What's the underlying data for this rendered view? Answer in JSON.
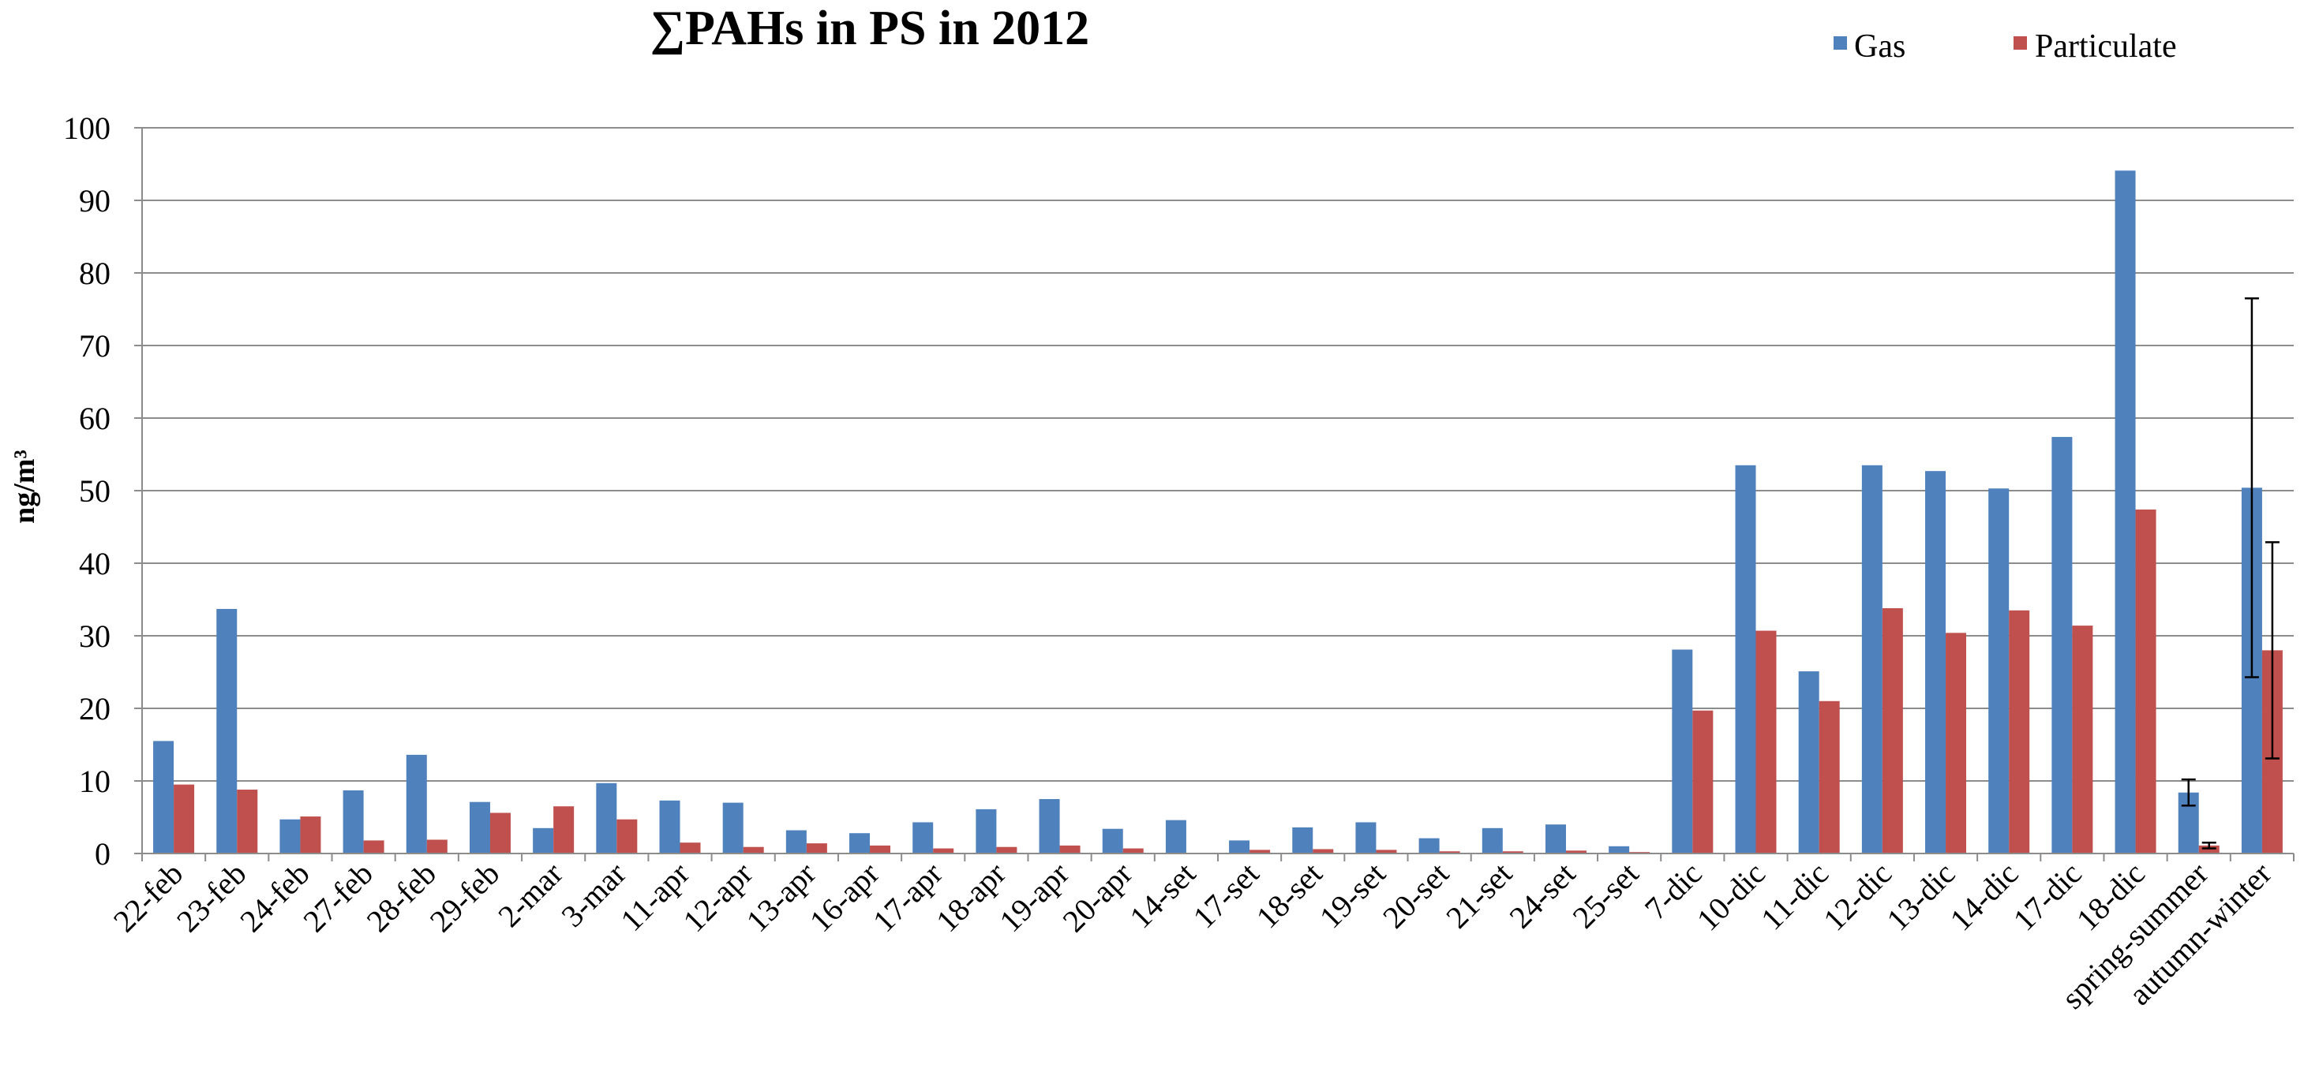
{
  "chart_data": {
    "type": "bar",
    "title": "∑PAHs in PS in 2012",
    "xlabel": "",
    "ylabel": "ng/m³",
    "ylim": [
      0,
      100
    ],
    "yticks": [
      0,
      10,
      20,
      30,
      40,
      50,
      60,
      70,
      80,
      90,
      100
    ],
    "grid": true,
    "legend_position": "top-right",
    "categories": [
      "22-feb",
      "23-feb",
      "24-feb",
      "27-feb",
      "28-feb",
      "29-feb",
      "2-mar",
      "3-mar",
      "11-apr",
      "12-apr",
      "13-apr",
      "16-apr",
      "17-apr",
      "18-apr",
      "19-apr",
      "20-apr",
      "14-set",
      "17-set",
      "18-set",
      "19-set",
      "20-set",
      "21-set",
      "24-set",
      "25-set",
      "7-dic",
      "10-dic",
      "11-dic",
      "12-dic",
      "13-dic",
      "14-dic",
      "17-dic",
      "18-dic",
      "spring-summer",
      "autumn-winter"
    ],
    "series": [
      {
        "name": "Gas",
        "color": "#4F81BD",
        "values": [
          15.5,
          33.7,
          4.7,
          8.7,
          13.6,
          7.1,
          3.5,
          9.7,
          7.3,
          7.0,
          3.2,
          2.8,
          4.3,
          6.1,
          7.5,
          3.4,
          4.6,
          1.8,
          3.6,
          4.3,
          2.1,
          3.5,
          4.0,
          1.0,
          28.1,
          53.5,
          25.1,
          53.5,
          52.7,
          50.3,
          57.4,
          94.1,
          8.4,
          50.4
        ],
        "error": [
          0,
          0,
          0,
          0,
          0,
          0,
          0,
          0,
          0,
          0,
          0,
          0,
          0,
          0,
          0,
          0,
          0,
          0,
          0,
          0,
          0,
          0,
          0,
          0,
          0,
          0,
          0,
          0,
          0,
          0,
          0,
          0,
          1.8,
          26.1
        ]
      },
      {
        "name": "Particulate",
        "color": "#C0504D",
        "values": [
          9.5,
          8.8,
          5.1,
          1.8,
          1.9,
          5.6,
          6.5,
          4.7,
          1.5,
          0.9,
          1.4,
          1.1,
          0.7,
          0.9,
          1.1,
          0.7,
          0.1,
          0.5,
          0.6,
          0.5,
          0.3,
          0.3,
          0.4,
          0.2,
          19.7,
          30.7,
          21.0,
          33.8,
          30.4,
          33.5,
          31.4,
          47.4,
          1.1,
          28.0
        ],
        "error": [
          0,
          0,
          0,
          0,
          0,
          0,
          0,
          0,
          0,
          0,
          0,
          0,
          0,
          0,
          0,
          0,
          0,
          0,
          0,
          0,
          0,
          0,
          0,
          0,
          0,
          0,
          0,
          0,
          0,
          0,
          0,
          0,
          0.4,
          14.9
        ]
      }
    ]
  }
}
